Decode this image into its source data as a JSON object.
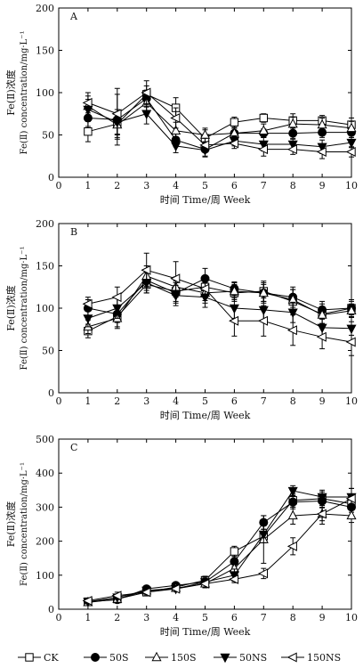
{
  "figure": {
    "legend": [
      {
        "label": "CK",
        "marker": "square-open",
        "line": "#000000"
      },
      {
        "label": "50S",
        "marker": "circle-filled",
        "line": "#000000"
      },
      {
        "label": "150S",
        "marker": "triangle-up-open",
        "line": "#000000"
      },
      {
        "label": "50NS",
        "marker": "triangle-down-filled",
        "line": "#000000"
      },
      {
        "label": "150NS",
        "marker": "triangle-left-open",
        "line": "#000000"
      }
    ],
    "colors": {
      "ink": "#000000",
      "background": "#ffffff"
    }
  },
  "chart_data": [
    {
      "type": "line",
      "panel_label": "A",
      "ylabel_cn": "Fe(Ⅱ)浓度",
      "ylabel_en": "Fe(Ⅱ) concentration/mg·L⁻¹",
      "xlabel": "时间 Time/周 Week",
      "xlim": [
        0,
        10
      ],
      "ylim": [
        0,
        200
      ],
      "xticks": [
        0,
        1,
        2,
        3,
        4,
        5,
        6,
        7,
        8,
        9,
        10
      ],
      "yticks": [
        0,
        50,
        100,
        150,
        200
      ],
      "x": [
        1,
        2,
        3,
        4,
        5,
        6,
        7,
        8,
        9,
        10
      ],
      "series": [
        {
          "name": "CK",
          "values": [
            54,
            63,
            98,
            82,
            46,
            65,
            70,
            67,
            67,
            62
          ],
          "err": [
            12,
            12,
            10,
            12,
            10,
            6,
            5,
            8,
            6,
            8
          ]
        },
        {
          "name": "50S",
          "values": [
            70,
            68,
            93,
            44,
            33,
            52,
            52,
            52,
            53,
            53
          ],
          "err": [
            10,
            30,
            10,
            8,
            8,
            6,
            5,
            6,
            6,
            6
          ]
        },
        {
          "name": "150S",
          "values": [
            84,
            62,
            88,
            55,
            50,
            52,
            55,
            63,
            62,
            58
          ],
          "err": [
            12,
            15,
            12,
            10,
            8,
            6,
            8,
            8,
            8,
            8
          ]
        },
        {
          "name": "50NS",
          "values": [
            80,
            65,
            75,
            37,
            32,
            43,
            39,
            39,
            36,
            41
          ],
          "err": [
            12,
            15,
            12,
            8,
            8,
            6,
            8,
            6,
            8,
            6
          ]
        },
        {
          "name": "150NS",
          "values": [
            88,
            75,
            100,
            70,
            38,
            40,
            33,
            33,
            30,
            30
          ],
          "err": [
            12,
            30,
            14,
            12,
            8,
            6,
            8,
            6,
            8,
            6
          ]
        }
      ]
    },
    {
      "type": "line",
      "panel_label": "B",
      "ylabel_cn": "Fe(Ⅱ)浓度",
      "ylabel_en": "Fe(Ⅱ) concentration/mg·L⁻¹",
      "xlabel": "时间 Time/周 Week",
      "xlim": [
        0,
        10
      ],
      "ylim": [
        0,
        200
      ],
      "xticks": [
        0,
        1,
        2,
        3,
        4,
        5,
        6,
        7,
        8,
        9,
        10
      ],
      "yticks": [
        0,
        50,
        100,
        150,
        200
      ],
      "x": [
        1,
        2,
        3,
        4,
        5,
        6,
        7,
        8,
        9,
        10
      ],
      "series": [
        {
          "name": "CK",
          "values": [
            73,
            90,
            128,
            120,
            125,
            118,
            120,
            108,
            93,
            100
          ],
          "err": [
            8,
            12,
            10,
            12,
            12,
            10,
            12,
            14,
            12,
            8
          ]
        },
        {
          "name": "50S",
          "values": [
            100,
            93,
            133,
            118,
            135,
            123,
            118,
            113,
            98,
            100
          ],
          "err": [
            10,
            10,
            12,
            12,
            12,
            8,
            10,
            12,
            10,
            10
          ]
        },
        {
          "name": "150S",
          "values": [
            78,
            88,
            138,
            125,
            118,
            120,
            118,
            110,
            92,
            97
          ],
          "err": [
            8,
            12,
            12,
            12,
            12,
            10,
            12,
            12,
            10,
            8
          ]
        },
        {
          "name": "50NS",
          "values": [
            88,
            100,
            130,
            115,
            113,
            100,
            98,
            95,
            77,
            76
          ],
          "err": [
            10,
            12,
            12,
            12,
            12,
            12,
            14,
            12,
            10,
            8
          ]
        },
        {
          "name": "150NS",
          "values": [
            105,
            113,
            145,
            135,
            123,
            85,
            85,
            74,
            66,
            60
          ],
          "err": [
            8,
            12,
            20,
            20,
            14,
            18,
            18,
            18,
            14,
            16
          ]
        }
      ]
    },
    {
      "type": "line",
      "panel_label": "C",
      "ylabel_cn": "Fe(Ⅱ)浓度",
      "ylabel_en": "Fe(Ⅱ) concentration/mg·L⁻¹",
      "xlabel": "时间 Time/周 Week",
      "xlim": [
        0,
        10
      ],
      "ylim": [
        0,
        500
      ],
      "xticks": [
        0,
        1,
        2,
        3,
        4,
        5,
        6,
        7,
        8,
        9,
        10
      ],
      "yticks": [
        0,
        100,
        200,
        300,
        400,
        500
      ],
      "x": [
        1,
        2,
        3,
        4,
        5,
        6,
        7,
        8,
        9,
        10
      ],
      "series": [
        {
          "name": "CK",
          "values": [
            22,
            30,
            50,
            65,
            85,
            170,
            215,
            320,
            325,
            310
          ],
          "err": [
            6,
            6,
            8,
            8,
            12,
            15,
            20,
            20,
            20,
            25
          ]
        },
        {
          "name": "50S",
          "values": [
            22,
            28,
            60,
            70,
            80,
            140,
            255,
            315,
            318,
            300
          ],
          "err": [
            6,
            6,
            8,
            8,
            12,
            15,
            20,
            20,
            20,
            25
          ]
        },
        {
          "name": "150S",
          "values": [
            20,
            30,
            55,
            62,
            75,
            120,
            205,
            275,
            280,
            275
          ],
          "err": [
            6,
            6,
            8,
            8,
            12,
            15,
            70,
            25,
            20,
            20
          ]
        },
        {
          "name": "50NS",
          "values": [
            22,
            35,
            55,
            60,
            80,
            100,
            220,
            348,
            330,
            330
          ],
          "err": [
            6,
            6,
            8,
            8,
            15,
            18,
            25,
            15,
            20,
            25
          ]
        },
        {
          "name": "150NS",
          "values": [
            25,
            40,
            50,
            60,
            75,
            88,
            105,
            185,
            280,
            325
          ],
          "err": [
            6,
            10,
            8,
            8,
            12,
            10,
            15,
            25,
            30,
            30
          ]
        }
      ]
    }
  ]
}
